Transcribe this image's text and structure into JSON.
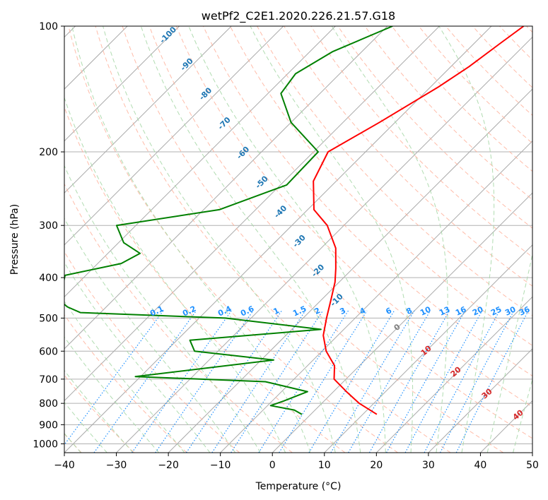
{
  "chart_data": {
    "type": "skew-t",
    "title": "wetPf2_C2E1.2020.226.21.57.G18",
    "xlabel": "Temperature (°C)",
    "ylabel": "Pressure (hPa)",
    "xlim": [
      -40,
      50
    ],
    "ylim": [
      1050,
      100
    ],
    "x_ticks": [
      "−40",
      "−30",
      "−20",
      "−10",
      "0",
      "10",
      "20",
      "30",
      "40",
      "50"
    ],
    "y_ticks": [
      "100",
      "200",
      "300",
      "400",
      "500",
      "600",
      "700",
      "800",
      "900",
      "1000"
    ],
    "series": [
      {
        "color": "#ff0000",
        "points": [
          [
            -33.8,
            100
          ],
          [
            -35.0,
            110
          ],
          [
            -36.5,
            125
          ],
          [
            -38.5,
            140
          ],
          [
            -43.0,
            170
          ],
          [
            -47.2,
            200
          ],
          [
            -44.4,
            235
          ],
          [
            -38.8,
            275
          ],
          [
            -33.2,
            300
          ],
          [
            -27.2,
            340
          ],
          [
            -23.3,
            380
          ],
          [
            -20.8,
            410
          ],
          [
            -18.3,
            450
          ],
          [
            -15.5,
            500
          ],
          [
            -12.8,
            550
          ],
          [
            -9.2,
            600
          ],
          [
            -4.8,
            650
          ],
          [
            -2.3,
            700
          ],
          [
            2.5,
            750
          ],
          [
            7.2,
            800
          ],
          [
            12.7,
            850
          ]
        ]
      },
      {
        "color": "#008000",
        "points": [
          [
            -59.0,
            100
          ],
          [
            -65.6,
            115
          ],
          [
            -68.5,
            130
          ],
          [
            -67.5,
            145
          ],
          [
            -60.0,
            170
          ],
          [
            -49.1,
            200
          ],
          [
            -48.8,
            240
          ],
          [
            -57.0,
            275
          ],
          [
            -73.7,
            300
          ],
          [
            -69.0,
            330
          ],
          [
            -63.8,
            350
          ],
          [
            -65.5,
            370
          ],
          [
            -74.0,
            395
          ],
          [
            -72.0,
            425
          ],
          [
            -71.6,
            445
          ],
          [
            -67.5,
            470
          ],
          [
            -63.9,
            485
          ],
          [
            -35.0,
            500
          ],
          [
            -14.4,
            532
          ],
          [
            -37.5,
            565
          ],
          [
            -34.5,
            600
          ],
          [
            -17.6,
            630
          ],
          [
            -41.0,
            690
          ],
          [
            -15.0,
            710
          ],
          [
            -5.0,
            750
          ],
          [
            -7.8,
            790
          ],
          [
            -9.4,
            810
          ],
          [
            -4.0,
            830
          ],
          [
            -1.7,
            850
          ]
        ]
      }
    ],
    "reference_lines": {
      "dry_adiabats_theta_C": [
        -100,
        -90,
        -80,
        -70,
        -60,
        -50,
        -40,
        -30,
        -20,
        -10
      ],
      "moist_adiabats_C": [
        0,
        10,
        20,
        30,
        40
      ],
      "mixing_ratio_g_per_kg": [
        "0.1",
        "0.2",
        "0.4",
        "0.6",
        "1",
        "1.5",
        "2",
        "3",
        "4",
        "6",
        "8",
        "10",
        "13",
        "16",
        "20",
        "25",
        "30",
        "36"
      ],
      "isotherm_spacing_C": 10
    },
    "colors": {
      "temperature": "#ff0000",
      "dewpoint": "#008000",
      "dry_adiabat_label": "#1f77b4",
      "moist_adiabat_label": "#d62728",
      "moist_adiabat_zero_label": "#7f7f7f",
      "mixing_ratio": "#1e90ff",
      "isotherm": "#aaaaaa",
      "dry_adiabat_line": "#ffb09a",
      "moist_adiabat_line": "#a9d8a9"
    },
    "grid": true
  }
}
